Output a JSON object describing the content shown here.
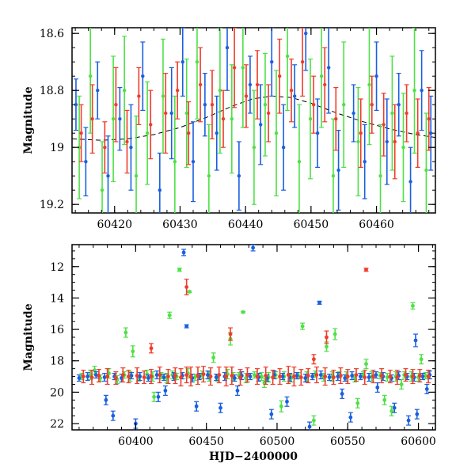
{
  "chart_data": [
    {
      "type": "scatter",
      "xlim": [
        60413.5,
        60469
      ],
      "ylim": [
        19.23,
        18.58
      ],
      "y_inverted": true,
      "ylabel": "Magnitude",
      "xlabel": "",
      "x_ticks": [
        60420,
        60430,
        60440,
        60450,
        60460
      ],
      "x_tick_labels": [
        "60420",
        "60430",
        "60440",
        "60450",
        "60460"
      ],
      "y_ticks": [
        18.6,
        18.8,
        19.0,
        19.2
      ],
      "y_tick_labels": [
        "18.6",
        "18.8",
        "19",
        "19.2"
      ],
      "grid": false,
      "legend": "none",
      "colors": {
        "blue": "#1a5fe0",
        "green": "#4fe046",
        "red": "#f03c2a",
        "model": "#000000"
      },
      "model_curve": {
        "style": "dashed",
        "x": [
          60413.5,
          60418,
          60422,
          60426,
          60430,
          60434,
          60438,
          60441,
          60444,
          60447,
          60450,
          60454,
          60458,
          60462,
          60466,
          60469
        ],
        "y": [
          18.97,
          18.975,
          18.97,
          18.955,
          18.93,
          18.895,
          18.855,
          18.83,
          18.82,
          18.825,
          18.845,
          18.88,
          18.91,
          18.935,
          18.955,
          18.965
        ]
      },
      "series": [
        {
          "color": "blue",
          "x": [
            60414.1,
            60415.6,
            60417.4,
            60419.0,
            60420.8,
            60422.5,
            60424.3,
            60426.9,
            60428.7,
            60430.4,
            60432.0,
            60433.8,
            60435.6,
            60437.2,
            60439.0,
            60440.7,
            60442.3,
            60444.0,
            60445.8,
            60447.5,
            60449.2,
            60451.0,
            60452.7,
            60454.2,
            60456.5,
            60458.2,
            60460.0,
            60461.6,
            60463.4,
            60465.2,
            60466.9,
            60468.3
          ],
          "y": [
            18.85,
            19.05,
            18.8,
            19.1,
            18.9,
            19.0,
            18.75,
            19.15,
            18.88,
            18.7,
            19.05,
            18.85,
            18.95,
            18.65,
            19.1,
            18.78,
            18.92,
            18.7,
            19.0,
            18.82,
            18.6,
            18.95,
            18.72,
            19.08,
            18.88,
            19.05,
            18.75,
            18.98,
            18.85,
            19.12,
            18.8,
            18.95
          ],
          "err": [
            0.09,
            0.12,
            0.1,
            0.14,
            0.11,
            0.15,
            0.12,
            0.13,
            0.16,
            0.12,
            0.14,
            0.11,
            0.13,
            0.15,
            0.12,
            0.1,
            0.14,
            0.12,
            0.15,
            0.11,
            0.13,
            0.12,
            0.16,
            0.14,
            0.1,
            0.13,
            0.12,
            0.15,
            0.11,
            0.12,
            0.14,
            0.13
          ]
        },
        {
          "color": "green",
          "x": [
            60414.6,
            60416.3,
            60418.1,
            60419.8,
            60421.5,
            60423.3,
            60425.0,
            60427.4,
            60429.2,
            60431.0,
            60432.6,
            60434.4,
            60436.1,
            60437.9,
            60439.6,
            60441.3,
            60443.0,
            60444.7,
            60446.4,
            60448.2,
            60449.9,
            60451.6,
            60453.4,
            60455.0,
            60457.2,
            60458.9,
            60460.6,
            60462.4,
            60464.1,
            60465.8,
            60467.6
          ],
          "y": [
            19.0,
            18.75,
            19.15,
            18.9,
            18.8,
            19.1,
            18.95,
            18.82,
            19.05,
            18.88,
            18.7,
            19.1,
            18.8,
            18.9,
            18.72,
            19.0,
            18.85,
            18.95,
            18.68,
            19.05,
            18.9,
            18.75,
            19.1,
            18.85,
            18.98,
            18.78,
            19.1,
            18.88,
            19.0,
            18.8,
            19.08
          ],
          "err": [
            0.18,
            0.2,
            0.17,
            0.22,
            0.19,
            0.21,
            0.18,
            0.2,
            0.23,
            0.19,
            0.2,
            0.18,
            0.22,
            0.19,
            0.21,
            0.2,
            0.18,
            0.22,
            0.19,
            0.2,
            0.21,
            0.18,
            0.2,
            0.22,
            0.19,
            0.21,
            0.18,
            0.2,
            0.19,
            0.22,
            0.2
          ]
        },
        {
          "color": "red",
          "x": [
            60414.9,
            60416.6,
            60418.5,
            60420.2,
            60421.9,
            60423.7,
            60425.5,
            60427.8,
            60429.6,
            60431.3,
            60433.1,
            60434.9,
            60436.6,
            60438.3,
            60440.1,
            60441.8,
            60443.5,
            60445.2,
            60447.0,
            60448.7,
            60450.4,
            60452.1,
            60453.8,
            60457.6,
            60459.3,
            60461.1,
            60462.8,
            60464.6,
            60466.3,
            60468.0
          ],
          "y": [
            18.95,
            18.9,
            19.0,
            18.85,
            18.98,
            18.82,
            18.92,
            18.88,
            18.8,
            18.95,
            18.78,
            18.85,
            18.9,
            18.72,
            18.82,
            18.78,
            18.88,
            18.75,
            18.8,
            18.7,
            18.85,
            18.78,
            18.9,
            18.95,
            18.85,
            18.92,
            18.98,
            18.88,
            18.95,
            18.9
          ],
          "err": [
            0.1,
            0.12,
            0.09,
            0.13,
            0.11,
            0.1,
            0.12,
            0.14,
            0.1,
            0.11,
            0.13,
            0.12,
            0.1,
            0.14,
            0.11,
            0.12,
            0.1,
            0.13,
            0.11,
            0.12,
            0.1,
            0.13,
            0.11,
            0.12,
            0.1,
            0.11,
            0.13,
            0.1,
            0.12,
            0.11
          ]
        }
      ]
    },
    {
      "type": "scatter",
      "xlim": [
        60355,
        60612
      ],
      "ylim": [
        22.4,
        10.6
      ],
      "y_inverted": true,
      "ylabel": "Magnitude",
      "xlabel": "HJD−2400000",
      "x_ticks": [
        60400,
        60450,
        60500,
        60550,
        60600
      ],
      "x_tick_labels": [
        "60400",
        "60450",
        "60500",
        "60550",
        "60600"
      ],
      "y_ticks": [
        12,
        14,
        16,
        18,
        20,
        22
      ],
      "y_tick_labels": [
        "12",
        "14",
        "16",
        "18",
        "20",
        "22"
      ],
      "grid": false,
      "legend": "none",
      "colors": {
        "blue": "#1a5fe0",
        "green": "#4fe046",
        "red": "#f03c2a"
      },
      "series": [
        {
          "color": "green",
          "x": [
            60362,
            60368,
            60375,
            60381,
            60387,
            60392,
            60396,
            60402,
            60408,
            60412,
            60418,
            60422,
            60426,
            60429,
            60437,
            60442,
            60447,
            60452,
            60458,
            60465,
            60469,
            60473,
            60478,
            60484,
            60489,
            60494,
            60499,
            60505,
            60510,
            60515,
            60521,
            60527,
            60533,
            60539,
            60544,
            60549,
            60555,
            60561,
            60567,
            60573,
            60578,
            60584,
            60590,
            60595,
            60600,
            60605,
            60371,
            60393,
            60398,
            60413,
            60424,
            60431,
            60438,
            60455,
            60467,
            60476,
            60491,
            60503,
            60518,
            60526,
            60535,
            60541,
            60557,
            60563,
            60576,
            60581,
            60588,
            60596,
            60602
          ],
          "y": [
            19.0,
            18.9,
            19.1,
            18.8,
            19.2,
            18.9,
            19.0,
            19.1,
            18.85,
            19.0,
            18.95,
            19.1,
            18.9,
            19.0,
            18.8,
            19.05,
            18.9,
            19.0,
            19.1,
            18.85,
            19.0,
            18.95,
            19.1,
            18.9,
            19.0,
            19.05,
            18.9,
            19.0,
            19.1,
            18.95,
            19.0,
            18.85,
            19.05,
            19.0,
            18.9,
            19.0,
            19.1,
            18.9,
            19.0,
            18.95,
            19.05,
            19.0,
            18.9,
            19.0,
            19.05,
            18.95,
            18.6,
            16.2,
            17.4,
            20.3,
            15.1,
            12.2,
            13.6,
            17.8,
            16.6,
            14.9,
            19.4,
            20.9,
            15.8,
            21.8,
            17.1,
            16.3,
            20.7,
            18.2,
            20.5,
            21.2,
            19.5,
            14.5,
            17.9
          ],
          "err": [
            0.2,
            0.3,
            0.2,
            0.3,
            0.25,
            0.2,
            0.3,
            0.2,
            0.25,
            0.3,
            0.2,
            0.3,
            0.25,
            0.2,
            0.3,
            0.2,
            0.25,
            0.3,
            0.2,
            0.3,
            0.25,
            0.2,
            0.3,
            0.2,
            0.25,
            0.3,
            0.2,
            0.3,
            0.25,
            0.2,
            0.3,
            0.2,
            0.25,
            0.3,
            0.2,
            0.3,
            0.25,
            0.2,
            0.3,
            0.2,
            0.25,
            0.3,
            0.2,
            0.3,
            0.25,
            0.2,
            0.25,
            0.3,
            0.35,
            0.3,
            0.2,
            0.1,
            0.05,
            0.3,
            0.4,
            0.05,
            0.3,
            0.35,
            0.2,
            0.3,
            0.3,
            0.35,
            0.3,
            0.3,
            0.3,
            0.3,
            0.3,
            0.2,
            0.3
          ]
        },
        {
          "color": "blue",
          "x": [
            60360,
            60366,
            60372,
            60378,
            60385,
            60390,
            60397,
            60403,
            60409,
            60415,
            60420,
            60427,
            60433,
            60440,
            60445,
            60451,
            60457,
            60463,
            60470,
            60475,
            60481,
            60487,
            60493,
            60498,
            60504,
            60509,
            60514,
            60520,
            60525,
            60531,
            60537,
            60543,
            60548,
            60553,
            60559,
            60565,
            60570,
            60575,
            60581,
            60586,
            60592,
            60597,
            60603,
            60608,
            60379,
            60384,
            60400,
            60416,
            60421,
            60434,
            60436,
            60443,
            60460,
            60472,
            60483,
            60496,
            60507,
            60523,
            60530,
            60546,
            60552,
            60571,
            60583,
            60593,
            60599,
            60598,
            60606
          ],
          "y": [
            19.1,
            19.0,
            18.9,
            19.05,
            19.0,
            19.1,
            18.95,
            19.0,
            19.1,
            18.9,
            19.05,
            19.0,
            18.95,
            19.1,
            19.0,
            18.9,
            19.05,
            19.0,
            19.1,
            18.95,
            19.0,
            19.05,
            19.1,
            18.9,
            19.0,
            19.05,
            18.95,
            19.1,
            19.0,
            18.9,
            19.05,
            19.0,
            19.1,
            18.95,
            19.0,
            19.05,
            18.9,
            19.0,
            19.1,
            18.95,
            19.0,
            19.05,
            19.0,
            18.9,
            20.5,
            21.5,
            22.0,
            20.3,
            19.9,
            11.1,
            15.8,
            20.9,
            21.0,
            19.9,
            10.8,
            21.4,
            20.6,
            22.2,
            14.3,
            20.1,
            21.6,
            19.7,
            21.0,
            21.8,
            21.4,
            16.7,
            19.8
          ],
          "err": [
            0.2,
            0.25,
            0.2,
            0.25,
            0.2,
            0.25,
            0.2,
            0.25,
            0.2,
            0.25,
            0.2,
            0.25,
            0.2,
            0.25,
            0.2,
            0.25,
            0.2,
            0.25,
            0.2,
            0.25,
            0.2,
            0.25,
            0.2,
            0.25,
            0.2,
            0.25,
            0.2,
            0.25,
            0.2,
            0.25,
            0.2,
            0.25,
            0.2,
            0.25,
            0.2,
            0.25,
            0.2,
            0.25,
            0.2,
            0.25,
            0.2,
            0.25,
            0.2,
            0.25,
            0.3,
            0.3,
            0.3,
            0.3,
            0.3,
            0.2,
            0.1,
            0.3,
            0.3,
            0.3,
            0.2,
            0.3,
            0.3,
            0.3,
            0.1,
            0.3,
            0.3,
            0.3,
            0.3,
            0.3,
            0.3,
            0.4,
            0.3
          ]
        },
        {
          "color": "red",
          "x": [
            60363,
            60369,
            60374,
            60380,
            60386,
            60391,
            60395,
            60401,
            60406,
            60411,
            60417,
            60423,
            60428,
            60432,
            60436,
            60439,
            60444,
            60448,
            60453,
            60459,
            60464,
            60468,
            60474,
            60479,
            60486,
            60492,
            60497,
            60502,
            60508,
            60512,
            60517,
            60522,
            60528,
            60534,
            60540,
            60545,
            60550,
            60556,
            60562,
            60568,
            60574,
            60580,
            60585,
            60591,
            60596,
            60601,
            60607,
            60411,
            60436,
            60467,
            60526,
            60535,
            60563
          ],
          "y": [
            19.0,
            19.05,
            18.95,
            19.0,
            19.1,
            18.9,
            19.0,
            18.95,
            19.05,
            19.0,
            18.9,
            19.0,
            18.95,
            19.05,
            18.9,
            19.0,
            18.95,
            18.85,
            19.0,
            18.9,
            19.0,
            18.95,
            19.05,
            18.9,
            19.0,
            18.95,
            19.05,
            19.0,
            18.9,
            19.0,
            19.05,
            18.95,
            18.9,
            19.0,
            19.05,
            18.95,
            19.0,
            18.9,
            19.05,
            19.0,
            18.95,
            19.0,
            19.05,
            18.9,
            19.0,
            18.95,
            19.0,
            17.2,
            13.3,
            16.3,
            17.9,
            16.5,
            12.2
          ],
          "err": [
            0.4,
            0.45,
            0.4,
            0.5,
            0.4,
            0.45,
            0.4,
            0.5,
            0.4,
            0.45,
            0.5,
            0.45,
            0.5,
            0.55,
            0.5,
            0.6,
            0.55,
            0.5,
            0.55,
            0.5,
            0.6,
            0.55,
            0.5,
            0.45,
            0.5,
            0.55,
            0.45,
            0.5,
            0.55,
            0.6,
            0.5,
            0.45,
            0.5,
            0.55,
            0.45,
            0.5,
            0.45,
            0.4,
            0.45,
            0.4,
            0.45,
            0.4,
            0.45,
            0.4,
            0.45,
            0.4,
            0.4,
            0.3,
            0.5,
            0.4,
            0.3,
            0.4,
            0.1
          ]
        }
      ]
    }
  ]
}
